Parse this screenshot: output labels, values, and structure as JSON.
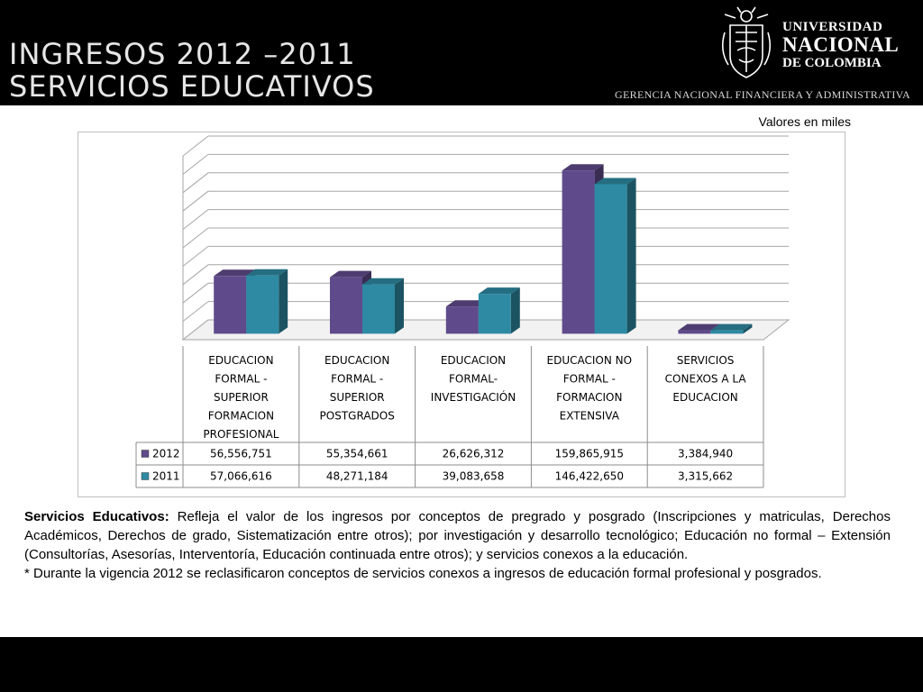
{
  "header": {
    "title_line1": "INGRESOS 2012 –2011",
    "title_line2": "SERVICIOS EDUCATIVOS",
    "logo_line1": "UNIVERSIDAD",
    "logo_line2": "NACIONAL",
    "logo_line3": "DE COLOMBIA",
    "subtitle": "GERENCIA NACIONAL FINANCIERA Y ADMINISTRATIVA"
  },
  "units_note": "Valores en miles",
  "chart_data": {
    "type": "bar",
    "categories": [
      [
        "EDUCACION",
        "FORMAL -",
        "SUPERIOR",
        "FORMACION",
        "PROFESIONAL"
      ],
      [
        "EDUCACION",
        "FORMAL -",
        "SUPERIOR",
        "POSTGRADOS"
      ],
      [
        "EDUCACION",
        "FORMAL-",
        "INVESTIGACIÓN"
      ],
      [
        "EDUCACION NO",
        "FORMAL -",
        "FORMACION",
        "EXTENSIVA"
      ],
      [
        "SERVICIOS",
        "CONEXOS A LA",
        "EDUCACION"
      ]
    ],
    "series": [
      {
        "name": "2012",
        "color": "#5f4b8b",
        "values": [
          56556751,
          55354661,
          26626312,
          159865915,
          3384940
        ],
        "labels": [
          "56,556,751",
          "55,354,661",
          "26,626,312",
          "159,865,915",
          "3,384,940"
        ]
      },
      {
        "name": "2011",
        "color": "#2e8aa3",
        "values": [
          57066616,
          48271184,
          39083658,
          146422650,
          3315662
        ],
        "labels": [
          "57,066,616",
          "48,271,184",
          "39,083,658",
          "146,422,650",
          "3,315,662"
        ]
      }
    ],
    "ylim": [
      0,
      180000000
    ],
    "grid": true,
    "data_table": true,
    "style": "3d-clustered-column"
  },
  "description": {
    "lead": "Servicios Educativos:",
    "text": " Refleja el valor de los ingresos por conceptos de pregrado y posgrado (Inscripciones y matriculas, Derechos Académicos, Derechos de grado, Sistematización entre otros); por investigación y desarrollo tecnológico; Educación no formal – Extensión (Consultorías, Asesorías, Interventoría, Educación continuada entre otros); y servicios conexos a la educación.",
    "note": "* Durante la vigencia 2012 se reclasificaron conceptos de servicios conexos a ingresos de educación formal profesional y posgrados."
  }
}
